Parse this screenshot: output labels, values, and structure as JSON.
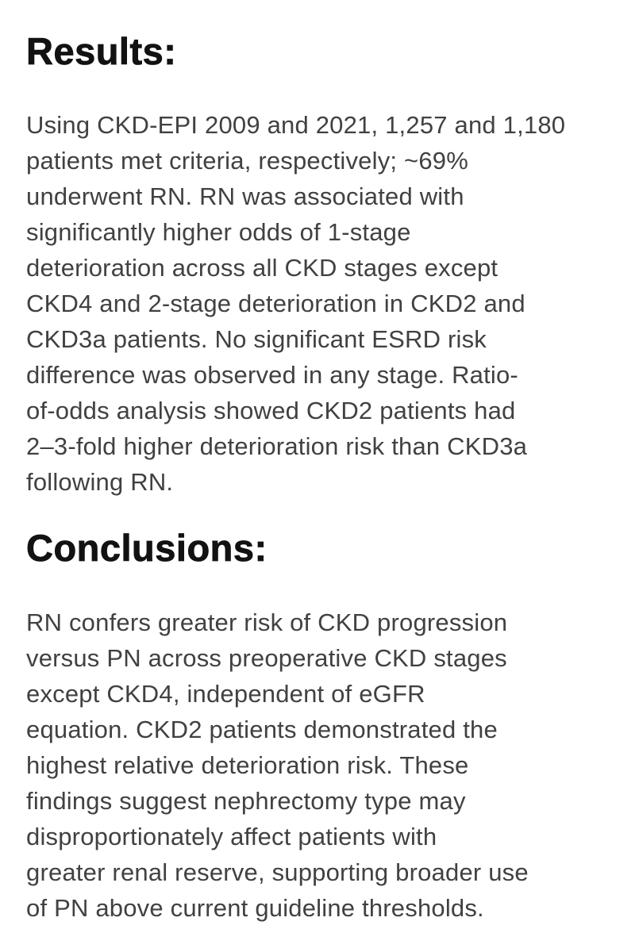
{
  "page": {
    "background_color": "#ffffff",
    "heading_color": "#121212",
    "body_text_color": "#414141"
  },
  "sections": [
    {
      "heading": "Results:",
      "body": "Using CKD-EPI 2009 and 2021, 1,257 and 1,180\npatients met criteria, respectively; ~69%\nunderwent RN. RN was associated with\nsignificantly higher odds of 1-stage\ndeterioration across all CKD stages except\nCKD4 and 2-stage deterioration in CKD2 and\nCKD3a patients. No significant ESRD risk\ndifference was observed in any stage. Ratio-\nof-odds analysis showed CKD2 patients had\n2–3-fold higher deterioration risk than CKD3a\nfollowing RN."
    },
    {
      "heading": "Conclusions:",
      "body": "RN confers greater risk of CKD progression\nversus PN across preoperative CKD stages\nexcept CKD4, independent of eGFR\nequation. CKD2 patients demonstrated the\nhighest relative deterioration risk. These\nfindings suggest nephrectomy type may\ndisproportionately affect patients with\ngreater renal reserve, supporting broader use\nof PN above current guideline thresholds."
    }
  ]
}
